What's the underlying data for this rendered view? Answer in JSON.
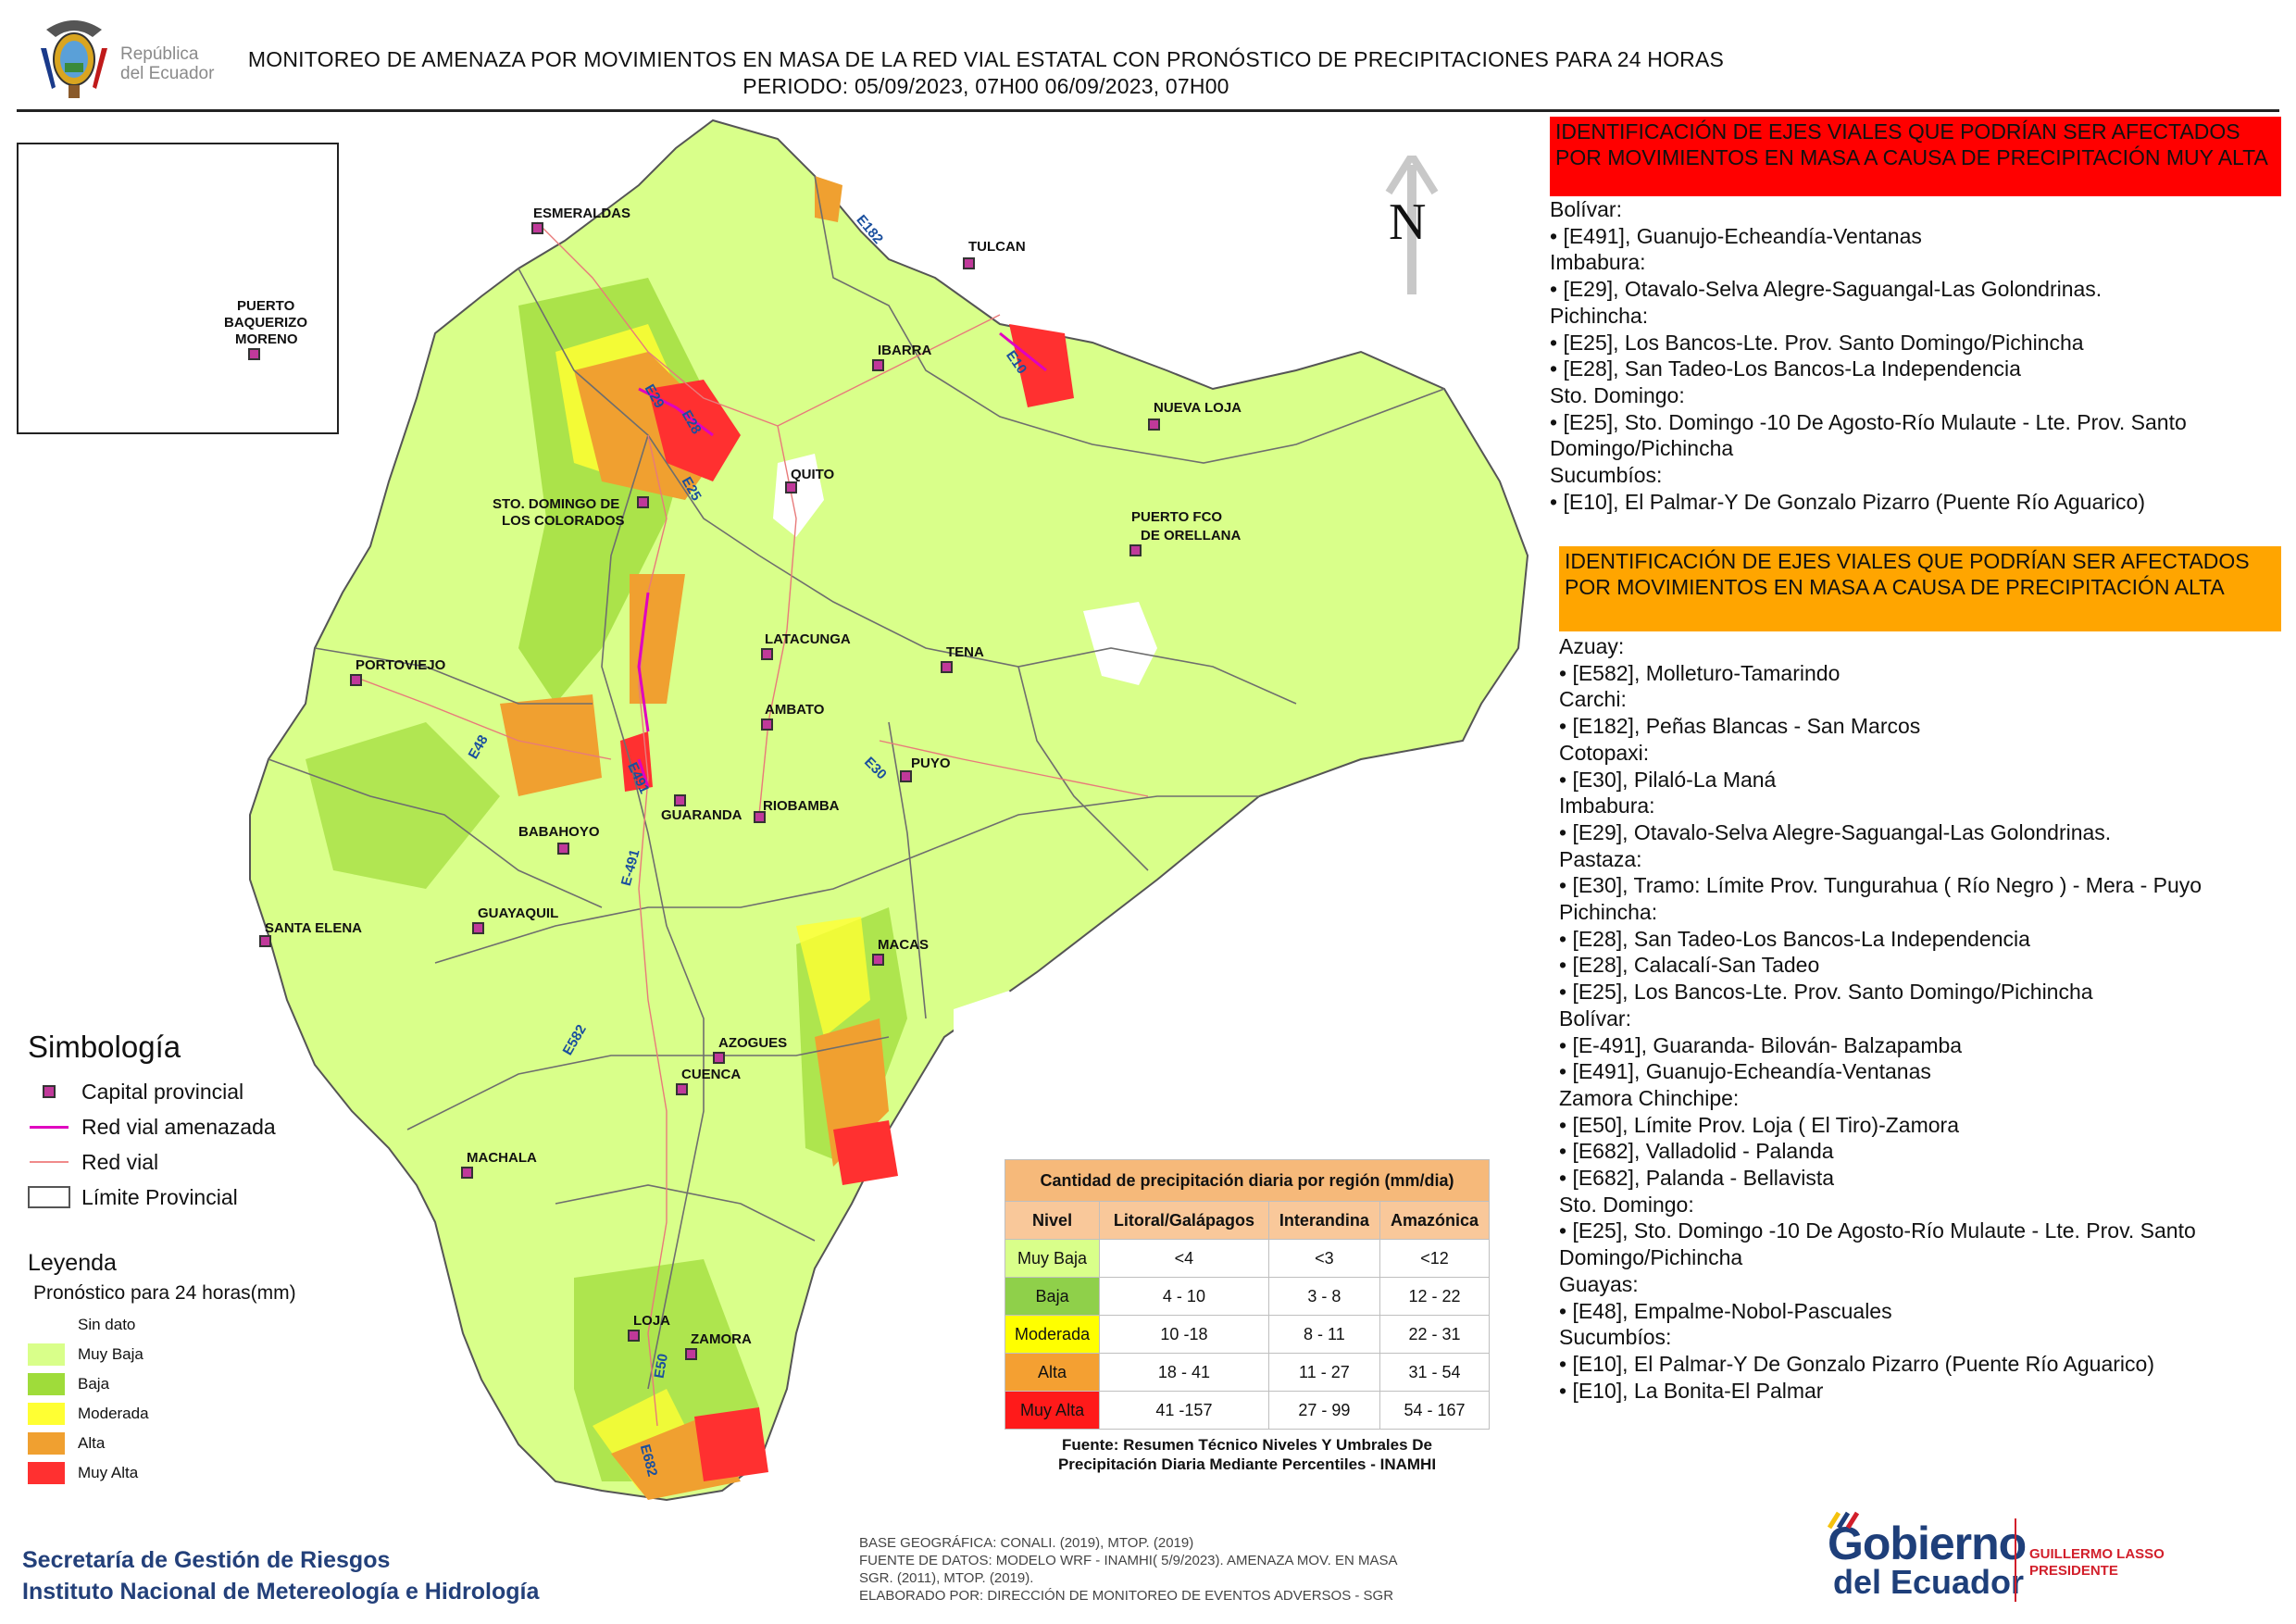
{
  "header": {
    "title_line1": "MONITOREO DE AMENAZA POR MOVIMIENTOS EN MASA DE LA RED VIAL  ESTATAL  CON PRONÓSTICO  DE  PRECIPITACIONES PARA 24 HORAS",
    "title_line2": "PERIODO: 05/09/2023, 07H00 06/09/2023, 07H00",
    "logo_text_line1": "República",
    "logo_text_line2": "del Ecuador"
  },
  "map": {
    "north_label": "N",
    "cities": [
      {
        "name": "ESMERALDAS"
      },
      {
        "name": "TULCAN"
      },
      {
        "name": "IBARRA"
      },
      {
        "name": "NUEVA LOJA"
      },
      {
        "name": "QUITO"
      },
      {
        "name": "STO. DOMINGO DE"
      },
      {
        "name": "LOS COLORADOS"
      },
      {
        "name": "PUERTO FCO"
      },
      {
        "name": "DE ORELLANA"
      },
      {
        "name": "LATACUNGA"
      },
      {
        "name": "TENA"
      },
      {
        "name": "PORTOVIEJO"
      },
      {
        "name": "AMBATO"
      },
      {
        "name": "PUYO"
      },
      {
        "name": "GUARANDA"
      },
      {
        "name": "RIOBAMBA"
      },
      {
        "name": "BABAHOYO"
      },
      {
        "name": "GUAYAQUIL"
      },
      {
        "name": "SANTA ELENA"
      },
      {
        "name": "MACAS"
      },
      {
        "name": "AZOGUES"
      },
      {
        "name": "CUENCA"
      },
      {
        "name": "MACHALA"
      },
      {
        "name": "LOJA"
      },
      {
        "name": "ZAMORA"
      },
      {
        "name": "PUERTO"
      },
      {
        "name": "BAQUERIZO"
      },
      {
        "name": "MORENO"
      }
    ],
    "roads": [
      "E182",
      "E10",
      "E29",
      "E28",
      "E25",
      "E491",
      "E30",
      "E-491",
      "E48",
      "E582",
      "E50",
      "E682"
    ]
  },
  "simbologia": {
    "title": "Simbología",
    "items": [
      "Capital provincial",
      "Red vial amenazada",
      "Red vial",
      "Límite Provincial"
    ]
  },
  "leyenda": {
    "title": "Leyenda",
    "subtitle": "Pronóstico para 24 horas(mm)",
    "items": [
      {
        "label": "Sin dato",
        "color": "#ffffff"
      },
      {
        "label": "Muy Baja",
        "color": "#d9ff8a"
      },
      {
        "label": "Baja",
        "color": "#9fdc3a"
      },
      {
        "label": "Moderada",
        "color": "#ffff33"
      },
      {
        "label": "Alta",
        "color": "#f0a030"
      },
      {
        "label": "Muy Alta",
        "color": "#ff3030"
      }
    ]
  },
  "precip_table": {
    "title": "Cantidad de precipitación diaria por región (mm/dia)",
    "headers": [
      "Nivel",
      "Litoral/Galápagos",
      "Interandina",
      "Amazónica"
    ],
    "rows": [
      {
        "nivel": "Muy Baja",
        "litoral": "<4",
        "interandina": "<3",
        "amazonica": "<12",
        "color": "#d9ff8a"
      },
      {
        "nivel": "Baja",
        "litoral": "4 - 10",
        "interandina": "3 - 8",
        "amazonica": "12 - 22",
        "color": "#8fd04a"
      },
      {
        "nivel": "Moderada",
        "litoral": "10 -18",
        "interandina": "8 - 11",
        "amazonica": "22 - 31",
        "color": "#ffff00"
      },
      {
        "nivel": "Alta",
        "litoral": "18 - 41",
        "interandina": "11 - 27",
        "amazonica": "31 - 54",
        "color": "#f4a032"
      },
      {
        "nivel": "Muy Alta",
        "litoral": "41 -157",
        "interandina": "27 - 99",
        "amazonica": "54 - 167",
        "color": "#ff1a1a"
      }
    ],
    "source_line1": "Fuente: Resumen Técnico Niveles Y Umbrales De",
    "source_line2": "Precipitación Diaria Mediante Percentiles - INAMHI"
  },
  "panel_red": {
    "header": "IDENTIFICACIÓN DE EJES VIALES QUE PODRÍAN SER AFECTADOS POR MOVIMIENTOS EN MASA A CAUSA DE PRECIPITACIÓN MUY ALTA",
    "lines": [
      "Bolívar:",
      "• [E491], Guanujo-Echeandía-Ventanas",
      "Imbabura:",
      "• [E29], Otavalo-Selva Alegre-Saguangal-Las Golondrinas.",
      "Pichincha:",
      "• [E25], Los Bancos-Lte. Prov. Santo Domingo/Pichincha",
      "• [E28], San Tadeo-Los Bancos-La Independencia",
      "Sto. Domingo:",
      "• [E25], Sto. Domingo -10 De Agosto-Río Mulaute - Lte. Prov. Santo",
      "Domingo/Pichincha",
      "Sucumbíos:",
      "• [E10], El Palmar-Y De Gonzalo Pizarro (Puente Río Aguarico)"
    ]
  },
  "panel_orange": {
    "header": "IDENTIFICACIÓN DE EJES VIALES QUE PODRÍAN SER AFECTADOS POR MOVIMIENTOS EN MASA A CAUSA DE PRECIPITACIÓN  ALTA",
    "lines": [
      "Azuay:",
      "• [E582], Molleturo-Tamarindo",
      "Carchi:",
      "• [E182], Peñas Blancas - San Marcos",
      "Cotopaxi:",
      "• [E30], Pilaló-La Maná",
      "Imbabura:",
      "• [E29], Otavalo-Selva Alegre-Saguangal-Las Golondrinas.",
      "Pastaza:",
      "• [E30], Tramo: Límite Prov. Tungurahua ( Río Negro ) - Mera - Puyo",
      "Pichincha:",
      "• [E28], San Tadeo-Los Bancos-La Independencia",
      "• [E28], Calacalí-San Tadeo",
      "• [E25], Los Bancos-Lte. Prov. Santo Domingo/Pichincha",
      "Bolívar:",
      "• [E-491], Guaranda- Bilován- Balzapamba",
      "• [E491], Guanujo-Echeandía-Ventanas",
      "Zamora Chinchipe:",
      "• [E50], Límite Prov. Loja ( El Tiro)-Zamora",
      "• [E682], Valladolid - Palanda",
      "• [E682], Palanda - Bellavista",
      "Sto. Domingo:",
      "• [E25], Sto. Domingo -10 De Agosto-Río Mulaute - Lte. Prov. Santo",
      "Domingo/Pichincha",
      "Guayas:",
      "• [E48], Empalme-Nobol-Pascuales",
      "Sucumbíos:",
      "• [E10], El Palmar-Y De Gonzalo Pizarro (Puente Río Aguarico)",
      "• [E10], La Bonita-El Palmar"
    ]
  },
  "footer": {
    "org_line1": "Secretaría de Gestión de Riesgos",
    "org_line2": "Instituto Nacional de Metereología e Hidrología",
    "credits_line1": "BASE GEOGRÁFICA: CONALI. (2019), MTOP. (2019)",
    "credits_line2": "FUENTE DE DATOS: MODELO WRF - INAMHI( 5/9/2023).  AMENAZA MOV. EN MASA",
    "credits_line3": "SGR. (2011), MTOP. (2019).",
    "credits_line4": "ELABORADO POR: DIRECCIÓN DE MONITOREO DE EVENTOS ADVERSOS - SGR",
    "gob_line1": "Gobierno",
    "gob_line2": "del Ecuador",
    "president_name": "GUILLERMO LASSO",
    "president_title": "PRESIDENTE"
  }
}
